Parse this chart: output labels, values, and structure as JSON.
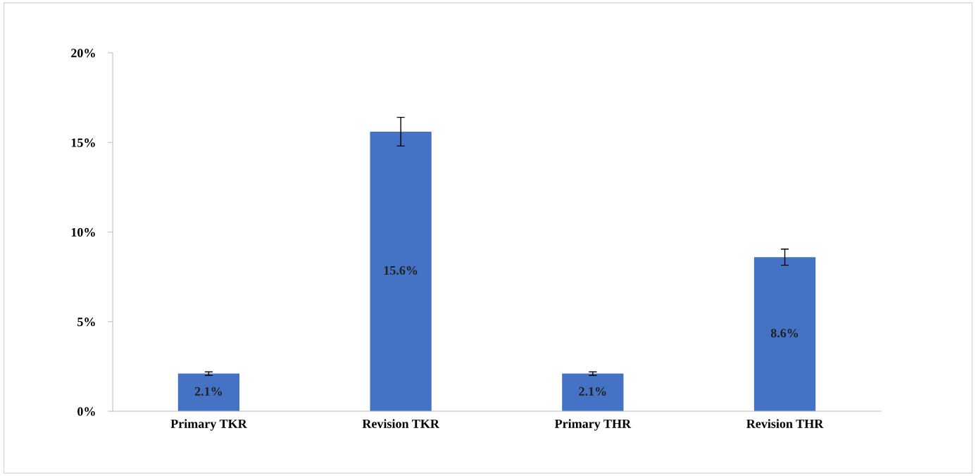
{
  "chart_data": {
    "type": "bar",
    "categories": [
      "Primary TKR",
      "Revision TKR",
      "Primary THR",
      "Revision THR"
    ],
    "values": [
      2.1,
      15.6,
      2.1,
      8.6
    ],
    "errors": [
      0.1,
      0.8,
      0.1,
      0.45
    ],
    "value_labels": [
      "2.1%",
      "15.6%",
      "2.1%",
      "8.6%"
    ],
    "color": "#4472c4",
    "ylim": [
      0,
      20
    ],
    "yticks": [
      {
        "value": 0,
        "label": "0%"
      },
      {
        "value": 5,
        "label": "5%"
      },
      {
        "value": 10,
        "label": "10%"
      },
      {
        "value": 15,
        "label": "15%"
      },
      {
        "value": 20,
        "label": "20%"
      }
    ],
    "grid": false
  }
}
